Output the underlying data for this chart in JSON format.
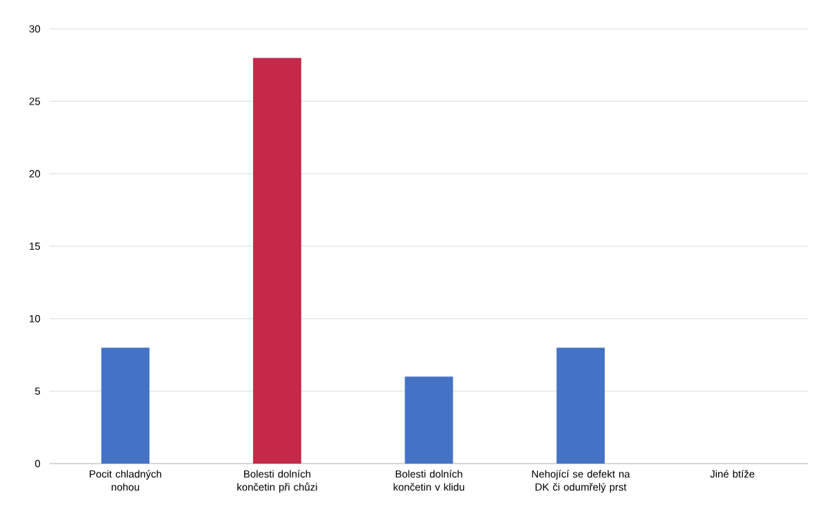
{
  "chart_data": {
    "type": "bar",
    "categories": [
      "Pocit chladných nohou",
      "Bolesti dolních končetin při chůzi",
      "Bolesti dolních končetin v klidu",
      "Nehojící se defekt na DK či odumřelý prst",
      "Jiné btíže"
    ],
    "values": [
      8,
      28,
      6,
      8,
      0
    ],
    "colors": [
      "#4472c4",
      "#c4294a",
      "#4472c4",
      "#4472c4",
      "#4472c4"
    ],
    "ylim": [
      0,
      30
    ],
    "yticks": [
      0,
      5,
      10,
      15,
      20,
      25,
      30
    ],
    "grid": "y"
  }
}
